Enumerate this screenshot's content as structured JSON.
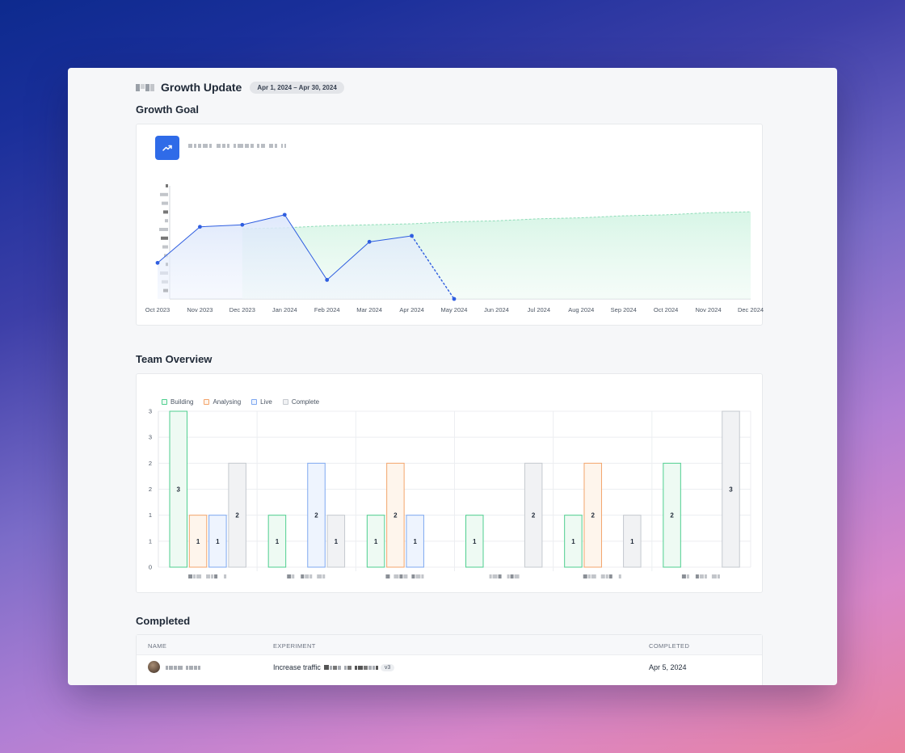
{
  "header": {
    "title": "Growth Update",
    "date_range": "Apr 1, 2024 – Apr 30, 2024"
  },
  "growth_goal": {
    "section_title": "Growth Goal",
    "chart_data": {
      "type": "line",
      "title": "",
      "x": [
        "Oct 2023",
        "Nov 2023",
        "Dec 2023",
        "Jan 2024",
        "Feb 2024",
        "Mar 2024",
        "Apr 2024",
        "May 2024",
        "Jun 2024",
        "Jul 2024",
        "Aug 2024",
        "Sep 2024",
        "Oct 2024",
        "Nov 2024",
        "Dec 2024"
      ],
      "series": [
        {
          "values": [
            0.36,
            0.72,
            0.74,
            0.84,
            0.19,
            0.57,
            0.63,
            0.0,
            null,
            null,
            null,
            null,
            null,
            null,
            null
          ]
        },
        {
          "values": [
            null,
            null,
            0.7,
            0.71,
            0.73,
            0.74,
            0.75,
            0.77,
            0.78,
            0.8,
            0.81,
            0.83,
            0.84,
            0.86,
            0.87
          ]
        }
      ],
      "y_tick_labels": "illegible (redacted)",
      "grid": false,
      "colors": {
        "actual": "#2f5ee0",
        "goal": "#8fdcb8"
      }
    }
  },
  "team_overview": {
    "section_title": "Team Overview",
    "chart_data": {
      "type": "bar",
      "categories": [
        "",
        "",
        "",
        "",
        "",
        ""
      ],
      "y_ticks": [
        "0",
        "1",
        "1",
        "2",
        "2",
        "3",
        "3"
      ],
      "ylim": [
        0,
        3
      ],
      "series": [
        {
          "name": "Building",
          "values": [
            3,
            1,
            1,
            1,
            1,
            2
          ],
          "color": "#4fcf8f",
          "fill": "#eefaf3"
        },
        {
          "name": "Analysing",
          "values": [
            1,
            0,
            2,
            0,
            2,
            0
          ],
          "color": "#f3a46b",
          "fill": "#fef5ec"
        },
        {
          "name": "Live",
          "values": [
            1,
            2,
            1,
            0,
            0,
            0
          ],
          "color": "#7ea8f0",
          "fill": "#eef4fe"
        },
        {
          "name": "Complete",
          "values": [
            2,
            1,
            0,
            2,
            1,
            3
          ],
          "color": "#c5c9cf",
          "fill": "#f1f2f4"
        }
      ],
      "legend": "top-left",
      "grid": true
    }
  },
  "completed": {
    "section_title": "Completed",
    "columns": {
      "name": "NAME",
      "experiment": "EXPERIMENT",
      "completed": "COMPLETED"
    },
    "rows": [
      {
        "experiment_prefix": "Increase traffic",
        "version": "v3",
        "completed": "Apr 5, 2024"
      }
    ]
  },
  "icons": {
    "goal": "trending-up-icon"
  }
}
